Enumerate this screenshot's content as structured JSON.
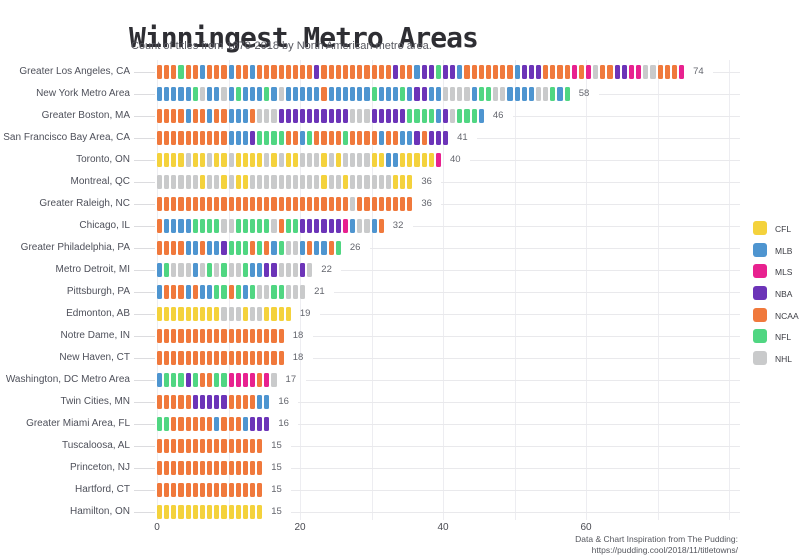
{
  "header": {
    "title": "Winningest Metro Areas",
    "subtitle": "Count of titles from 1870-2018 by North American metro area."
  },
  "footer": {
    "line1": "Data & Chart Inspiration from The Pudding:",
    "line2": "https://pudding.cool/2018/11/titletowns/"
  },
  "legend": {
    "items": [
      {
        "code": "C",
        "label": "CFL",
        "color": "#F4D23C"
      },
      {
        "code": "B",
        "label": "MLB",
        "color": "#4E95D0"
      },
      {
        "code": "S",
        "label": "MLS",
        "color": "#E8218F"
      },
      {
        "code": "N",
        "label": "NBA",
        "color": "#6C34B8"
      },
      {
        "code": "A",
        "label": "NCAA",
        "color": "#F0793C"
      },
      {
        "code": "F",
        "label": "NFL",
        "color": "#50D682"
      },
      {
        "code": "H",
        "label": "NHL",
        "color": "#C9CACB"
      }
    ]
  },
  "axis": {
    "tick_labels": [
      "0",
      "20",
      "40",
      "60"
    ],
    "tick_values": [
      0,
      20,
      40,
      60
    ],
    "gridline_step": 10,
    "gridline_count": 9
  },
  "chart_data": {
    "type": "bar",
    "variant": "unit-bar",
    "unit_meaning": "1 square = 1 championship title, colored by league",
    "title": "Winningest Metro Areas",
    "subtitle": "Count of titles from 1870-2018 by North American metro area.",
    "xlabel": "",
    "ylabel": "",
    "xlim": [
      0,
      80
    ],
    "legend_position": "right",
    "league_codes": {
      "C": "CFL",
      "B": "MLB",
      "S": "MLS",
      "N": "NBA",
      "A": "NCAA",
      "F": "NFL",
      "H": "NHL"
    },
    "rows": [
      {
        "label": "Greater Los Angeles, CA",
        "value": 74,
        "units": "AAAFAABAAABAABAAAAAAAANAAAAAAAAAANAABNNFNNBAAAAAAABNNNAAAASASHAANNSSHHAAAS"
      },
      {
        "label": "New York Metro Area",
        "value": 58,
        "units": "BBBBBFHBBHBFBBBFBHBBBBBABBBBBBFBBBFBNNBBHHHHBFFHHBBBBHHFBF"
      },
      {
        "label": "Greater Boston, MA",
        "value": 46,
        "units": "AAAABAABAABBBAHHHNNNNNNNNNNHHHNNNNNFFFFBNHFFFB"
      },
      {
        "label": "San Francisco Bay Area, CA",
        "value": 41,
        "units": "AAAAAAAAAABBBNFFFFAABFAAAAFAAAABAABBNANNN"
      },
      {
        "label": "Toronto, ON",
        "value": 40,
        "units": "CCCCHCCHCCHCCCCHCHCCHHHCHCHHHHCCBBCCCCCS"
      },
      {
        "label": "Montreal, QC",
        "value": 36,
        "units": "HHHHHHCHHCHCCHHHHHHHHHHCHHCHHHHHHCCC"
      },
      {
        "label": "Greater Raleigh, NC",
        "value": 36,
        "units": "AAAAAAAAAAAAAAAAAAAAAAAAAAAHAAAAAAAA"
      },
      {
        "label": "Chicago, IL",
        "value": 32,
        "units": "ABBBBFFFFHHFFFFFHAFFNNNNNNSBHHBA"
      },
      {
        "label": "Greater Philadelphia, PA",
        "value": 26,
        "units": "AAAABBABBNFFFAFABFHHBABBAF"
      },
      {
        "label": "Metro Detroit, MI",
        "value": 22,
        "units": "BFHHHBHFHFHHFBBNNHHHNH"
      },
      {
        "label": "Pittsburgh, PA",
        "value": 21,
        "units": "BAAABABBFFAFBFHHFFHHH"
      },
      {
        "label": "Edmonton, AB",
        "value": 19,
        "units": "CCCCCCCCCHHHCHHCCCC"
      },
      {
        "label": "Notre Dame, IN",
        "value": 18,
        "units": "AAAAAAAAAAAAAAAAAA"
      },
      {
        "label": "New Haven, CT",
        "value": 18,
        "units": "AAAAAAAAAAAAAAAAAA"
      },
      {
        "label": "Washington, DC Metro Area",
        "value": 17,
        "units": "BFFFNFAAFFSSSSASH"
      },
      {
        "label": "Twin Cities, MN",
        "value": 16,
        "units": "AAAAANNNNNAAAABB"
      },
      {
        "label": "Greater Miami Area, FL",
        "value": 16,
        "units": "FFAAAAAABAAABNNN"
      },
      {
        "label": "Tuscaloosa, AL",
        "value": 15,
        "units": "AAAAAAAAAAAAAAA"
      },
      {
        "label": "Princeton, NJ",
        "value": 15,
        "units": "AAAAAAAAAAAAAAA"
      },
      {
        "label": "Hartford, CT",
        "value": 15,
        "units": "AAAAAAAAAAAAAAA"
      },
      {
        "label": "Hamilton, ON",
        "value": 15,
        "units": "CCCCCCCCCCCCCCC"
      }
    ]
  }
}
